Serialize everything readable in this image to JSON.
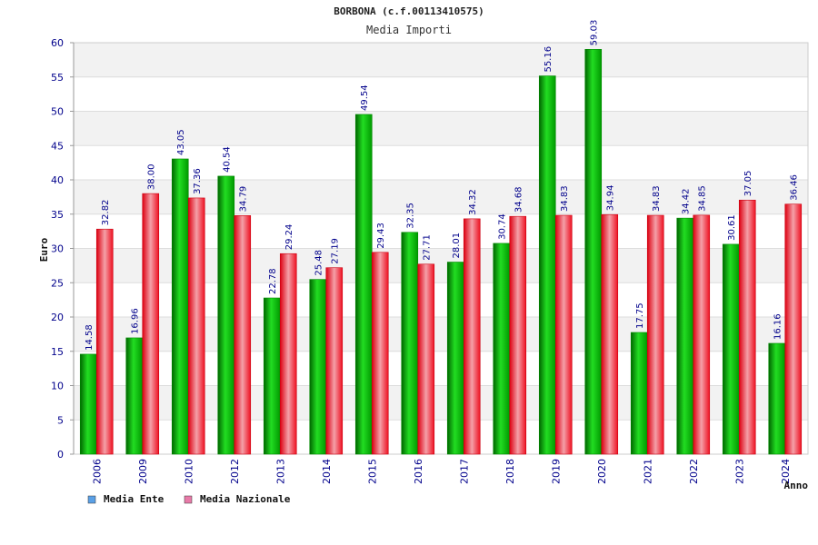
{
  "chart_data": {
    "type": "bar",
    "title": "BORBONA (c.f.00113410575)",
    "subtitle": "Media Importi",
    "xlabel": "Anno",
    "ylabel": "Euro",
    "ylim": [
      0,
      60
    ],
    "yticks": [
      0,
      5,
      10,
      15,
      20,
      25,
      30,
      35,
      40,
      45,
      50,
      55,
      60
    ],
    "grid": true,
    "legend_position": "bottom-left",
    "categories": [
      "2006",
      "2009",
      "2010",
      "2012",
      "2013",
      "2014",
      "2015",
      "2016",
      "2017",
      "2018",
      "2019",
      "2020",
      "2021",
      "2022",
      "2023",
      "2024"
    ],
    "series": [
      {
        "name": "Media Ente",
        "color": "#00bb00",
        "legend_color": "#5aa0e6",
        "values": [
          14.58,
          16.96,
          43.05,
          40.54,
          22.78,
          25.48,
          49.54,
          32.35,
          28.01,
          30.74,
          55.16,
          59.03,
          17.75,
          34.42,
          30.61,
          16.16
        ],
        "labels": [
          "14.58",
          "16.96",
          "43.05",
          "40.54",
          "22.78",
          "25.48",
          "49.54",
          "32.35",
          "28.01",
          "30.74",
          "55.16",
          "59.03",
          "17.75",
          "34.42",
          "30.61",
          "16.16"
        ]
      },
      {
        "name": "Media Nazionale",
        "color": "#ee1122",
        "legend_color": "#e87aa8",
        "values": [
          32.82,
          38.0,
          37.36,
          34.79,
          29.24,
          27.19,
          29.43,
          27.71,
          34.32,
          34.68,
          34.83,
          34.94,
          34.83,
          34.85,
          37.05,
          36.46
        ],
        "labels": [
          "32.82",
          "38.00",
          "37.36",
          "34.79",
          "29.24",
          "27.19",
          "29.43",
          "27.71",
          "34.32",
          "34.68",
          "34.83",
          "34.94",
          "34.83",
          "34.85",
          "37.05",
          "36.46"
        ]
      }
    ]
  }
}
